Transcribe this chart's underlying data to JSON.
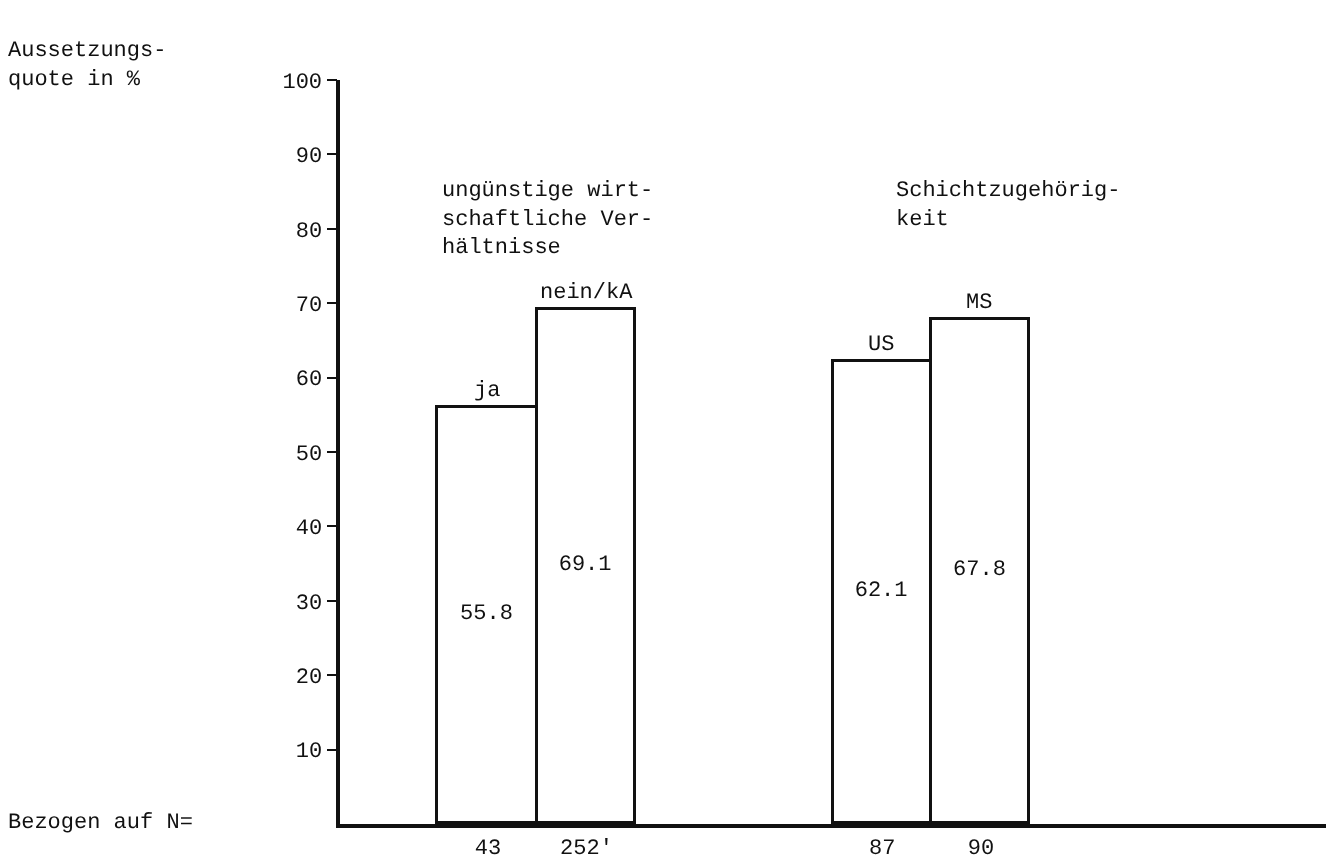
{
  "chart_data": {
    "type": "bar",
    "categories": [
      null,
      "43",
      "252'",
      null,
      null,
      "87",
      "90",
      null,
      null,
      null
    ],
    "values": [
      null,
      55.8,
      69.1,
      null,
      null,
      62.1,
      67.8,
      null,
      null,
      null
    ],
    "color": "#ffffff",
    "data_labels": true,
    "ylim": [
      0,
      100
    ],
    "yticks": [
      10,
      20,
      30,
      40,
      50,
      60,
      70,
      80,
      90,
      100
    ],
    "grid": false,
    "annotations": [
      "Aussetzungs-\nquote in %",
      "ungünstige wirt-\nschaftliche Ver-\nhältnisse",
      "Schichtzugehörig-\nkeit",
      "Bezogen auf N=",
      {
        "text": "ja",
        "x": "43",
        "y": 55.8
      },
      {
        "text": "nein/kA",
        "x": "252'",
        "y": 69.1
      },
      {
        "text": "US",
        "x": "87",
        "y": 62.1
      },
      {
        "text": "MS",
        "x": "90",
        "y": 67.8
      }
    ]
  }
}
